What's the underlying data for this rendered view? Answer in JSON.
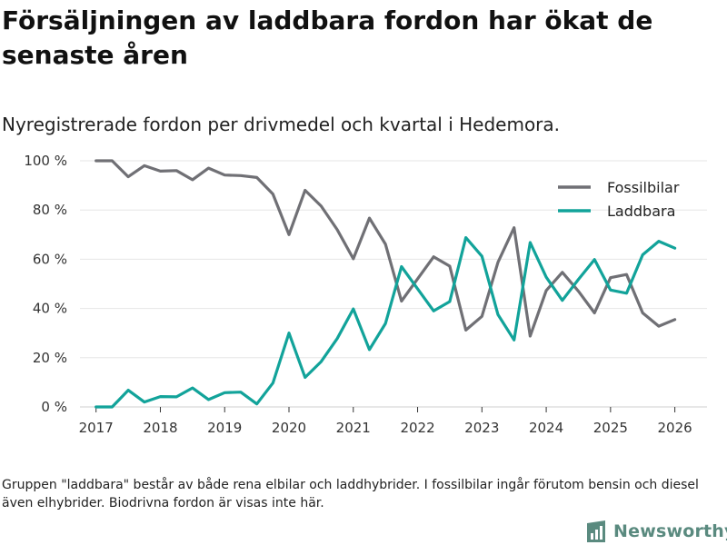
{
  "title": "Försäljningen av laddbara fordon har ökat de senaste åren",
  "subtitle": "Nyregistrerade fordon per drivmedel och kvartal i Hedemora.",
  "footnote": "Gruppen \"laddbara\" består av både rena elbilar och laddhybrider. I fossilbilar ingår förutom bensin och diesel även elhybrider. Biodrivna fordon är visas inte här.",
  "brand": {
    "name": "Newsworthy",
    "icon": "bar-chart-logo-icon"
  },
  "chart_data": {
    "type": "line",
    "xlabel": "",
    "ylabel": "",
    "xlim": [
      2016.75,
      2026.5
    ],
    "ylim": [
      0,
      100
    ],
    "grid": true,
    "legend_position": "top-right",
    "x_ticks": [
      2017,
      2018,
      2019,
      2020,
      2021,
      2022,
      2023,
      2024,
      2025,
      2026
    ],
    "x_tick_labels": [
      "2017",
      "2018",
      "2019",
      "2020",
      "2021",
      "2022",
      "2023",
      "2024",
      "2025",
      "2026"
    ],
    "y_ticks": [
      0,
      20,
      40,
      60,
      80,
      100
    ],
    "y_tick_labels": [
      "0 %",
      "20 %",
      "40 %",
      "60 %",
      "80 %",
      "100 %"
    ],
    "x": [
      2017,
      2017.25,
      2017.5,
      2017.75,
      2018,
      2018.25,
      2018.5,
      2018.75,
      2019,
      2019.25,
      2019.5,
      2019.75,
      2020,
      2020.25,
      2020.5,
      2020.75,
      2021,
      2021.25,
      2021.5,
      2021.75,
      2022,
      2022.25,
      2022.5,
      2022.75,
      2023,
      2023.25,
      2023.5,
      2023.75,
      2024,
      2024.25,
      2024.5,
      2024.75,
      2025,
      2025.25,
      2025.5,
      2025.75,
      2026
    ],
    "series": [
      {
        "name": "Fossilbilar",
        "color": "#707075",
        "values": [
          100,
          100,
          93.5,
          98,
          95.8,
          96,
          92.3,
          97,
          94.2,
          94,
          93.2,
          86.5,
          70,
          88,
          81.6,
          72,
          60.2,
          76.7,
          66.1,
          43,
          52,
          61,
          57.2,
          31.2,
          36.8,
          58.8,
          72.8,
          28.8,
          47.3,
          54.7,
          47,
          38.2,
          52.5,
          53.8,
          38.2,
          32.8,
          35.5
        ]
      },
      {
        "name": "Laddbara",
        "color": "#12a39a",
        "values": [
          0,
          0,
          6.8,
          2,
          4.2,
          4.1,
          7.7,
          3,
          5.8,
          6,
          1.2,
          9.7,
          30,
          12,
          18.4,
          27.8,
          39.8,
          23.3,
          33.9,
          57,
          48,
          39,
          42.8,
          68.8,
          61.2,
          37.5,
          27.2,
          66.8,
          52.7,
          43.3,
          51.8,
          59.9,
          47.5,
          46.2,
          61.8,
          67.3,
          64.5
        ]
      }
    ]
  }
}
